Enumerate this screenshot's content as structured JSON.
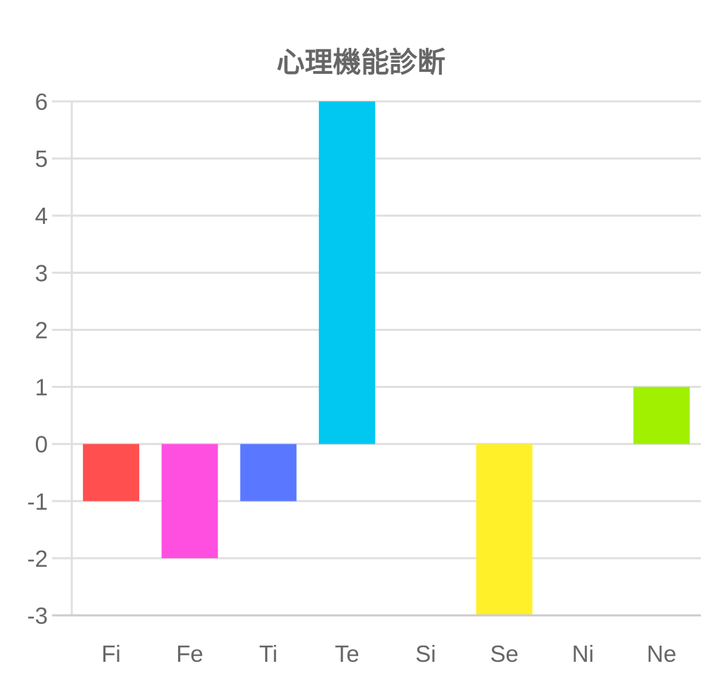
{
  "chart_data": {
    "type": "bar",
    "title": "心理機能診断",
    "categories": [
      "Fi",
      "Fe",
      "Ti",
      "Te",
      "Si",
      "Se",
      "Ni",
      "Ne"
    ],
    "values": [
      -1,
      -2,
      -1,
      6,
      0,
      -3,
      0,
      1
    ],
    "colors": [
      "#ff4f4f",
      "#ff4fe0",
      "#5a78ff",
      "#00c8f0",
      "#aaaaaa",
      "#fff02a",
      "#aaaaaa",
      "#a0f000"
    ],
    "ylim": [
      -3,
      6
    ],
    "yticks": [
      "6",
      "5",
      "4",
      "3",
      "2",
      "1",
      "0",
      "-1",
      "-2",
      "-3"
    ],
    "xlabel": "",
    "ylabel": "",
    "grid": true,
    "gridColor": "#e0e0e0",
    "axisColor": "#cccccc"
  }
}
